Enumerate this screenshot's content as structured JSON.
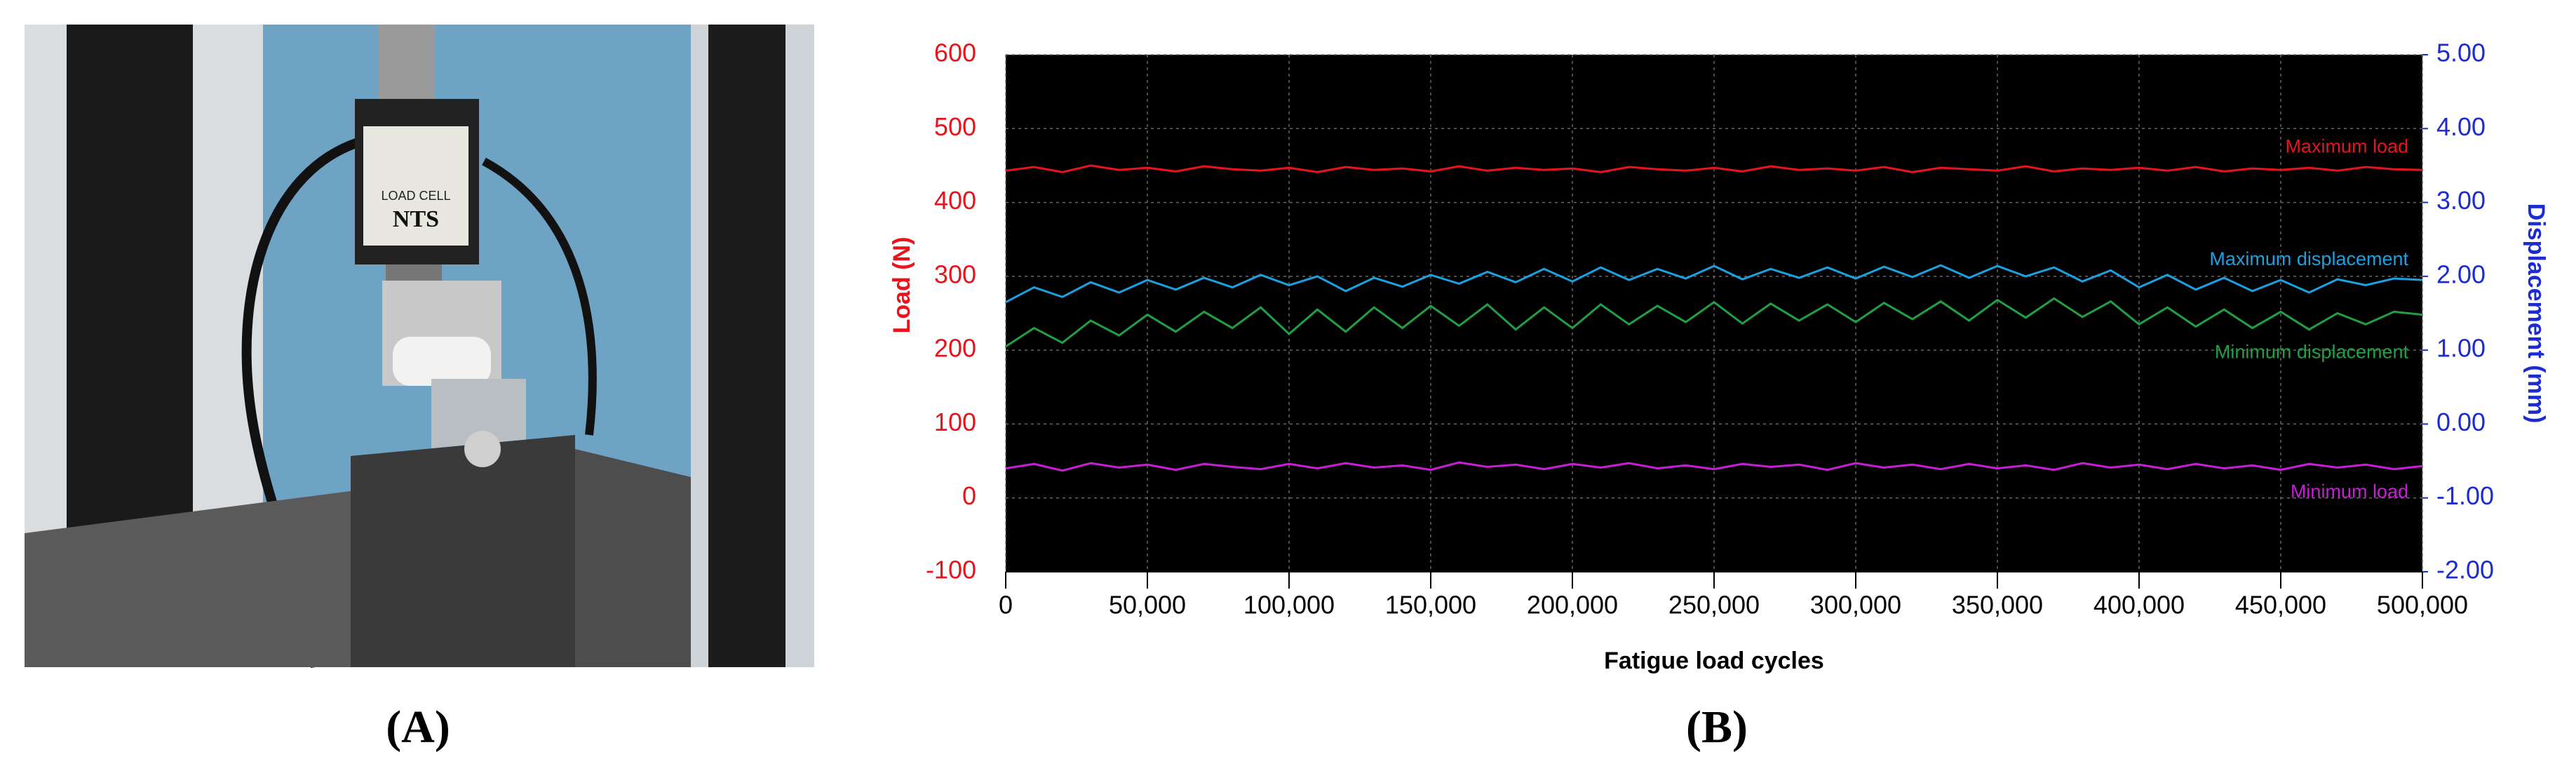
{
  "panel_a": {
    "label": "(A)",
    "load_cell_text": [
      "LOAD CELL",
      "NTS"
    ]
  },
  "panel_b_label": "(B)",
  "chart_data": {
    "type": "line",
    "xlabel": "Fatigue load cycles",
    "ylabel": "Load (N)",
    "y2label": "Displacement (mm)",
    "ycolor": "#e8141b",
    "y2color": "#1c2bd2",
    "background": "#000000",
    "grid": true,
    "x": [
      0,
      10000,
      20000,
      30000,
      40000,
      50000,
      60000,
      70000,
      80000,
      90000,
      100000,
      110000,
      120000,
      130000,
      140000,
      150000,
      160000,
      170000,
      180000,
      190000,
      200000,
      210000,
      220000,
      230000,
      240000,
      250000,
      260000,
      270000,
      280000,
      290000,
      300000,
      310000,
      320000,
      330000,
      340000,
      350000,
      360000,
      370000,
      380000,
      390000,
      400000,
      410000,
      420000,
      430000,
      440000,
      450000,
      460000,
      470000,
      480000,
      490000,
      500000
    ],
    "xlim": [
      0,
      500000
    ],
    "xticks": [
      0,
      {
        "value": 50000,
        "label": "50,000"
      },
      {
        "value": 100000,
        "label": "100,000"
      },
      {
        "value": 150000,
        "label": "150,000"
      },
      {
        "value": 200000,
        "label": "200,000"
      },
      {
        "value": 250000,
        "label": "250,000"
      },
      {
        "value": 300000,
        "label": "300,000"
      },
      {
        "value": 350000,
        "label": "350,000"
      },
      {
        "value": 400000,
        "label": "400,000"
      },
      {
        "value": 450000,
        "label": "450,000"
      },
      {
        "value": 500000,
        "label": "500,000"
      }
    ],
    "ylim": [
      -100,
      600
    ],
    "yticks": [
      -100,
      0,
      100,
      200,
      300,
      400,
      500,
      600
    ],
    "y2lim": [
      -2,
      5
    ],
    "y2ticks": [
      {
        "value": -2,
        "label": "-2.00"
      },
      {
        "value": -1,
        "label": "-1.00"
      },
      {
        "value": 0,
        "label": "0.00"
      },
      {
        "value": 1,
        "label": "1.00"
      },
      {
        "value": 2,
        "label": "2.00"
      },
      {
        "value": 3,
        "label": "3.00"
      },
      {
        "value": 4,
        "label": "4.00"
      },
      {
        "value": 5,
        "label": "5.00"
      }
    ],
    "series": [
      {
        "name": "Maximum load",
        "color": "#e8141b",
        "values": [
          443,
          448,
          441,
          450,
          444,
          447,
          442,
          449,
          445,
          443,
          447,
          441,
          448,
          444,
          446,
          442,
          449,
          443,
          447,
          444,
          446,
          441,
          448,
          445,
          443,
          447,
          442,
          449,
          444,
          446,
          443,
          448,
          441,
          447,
          445,
          443,
          449,
          442,
          446,
          444,
          447,
          443,
          448,
          442,
          446,
          444,
          447,
          443,
          448,
          445,
          444
        ]
      },
      {
        "name": "Minimum load",
        "color": "#c71ed6",
        "values": [
          40,
          46,
          37,
          47,
          41,
          45,
          38,
          46,
          42,
          39,
          46,
          40,
          47,
          41,
          44,
          38,
          48,
          42,
          45,
          39,
          46,
          41,
          47,
          40,
          44,
          39,
          46,
          42,
          45,
          38,
          47,
          41,
          45,
          39,
          46,
          40,
          44,
          38,
          47,
          41,
          45,
          39,
          46,
          40,
          44,
          38,
          46,
          41,
          45,
          39,
          43
        ]
      },
      {
        "name": "Maximum displacement",
        "color": "#1ba1e2",
        "axis": "y2",
        "values": [
          1.65,
          1.85,
          1.72,
          1.92,
          1.78,
          1.95,
          1.82,
          1.98,
          1.85,
          2.02,
          1.88,
          2.0,
          1.8,
          1.98,
          1.86,
          2.02,
          1.9,
          2.06,
          1.92,
          2.1,
          1.93,
          2.12,
          1.95,
          2.1,
          1.97,
          2.14,
          1.96,
          2.1,
          1.98,
          2.12,
          1.97,
          2.13,
          1.99,
          2.15,
          1.98,
          2.14,
          2.0,
          2.12,
          1.93,
          2.08,
          1.85,
          2.02,
          1.82,
          1.98,
          1.8,
          1.95,
          1.78,
          1.96,
          1.88,
          1.97,
          1.95
        ]
      },
      {
        "name": "Minimum displacement",
        "color": "#20a045",
        "axis": "y2",
        "values": [
          1.05,
          1.3,
          1.1,
          1.4,
          1.2,
          1.48,
          1.25,
          1.52,
          1.3,
          1.58,
          1.22,
          1.55,
          1.25,
          1.58,
          1.3,
          1.6,
          1.33,
          1.62,
          1.28,
          1.58,
          1.3,
          1.62,
          1.35,
          1.6,
          1.38,
          1.65,
          1.36,
          1.63,
          1.4,
          1.62,
          1.38,
          1.64,
          1.42,
          1.66,
          1.4,
          1.68,
          1.44,
          1.7,
          1.45,
          1.66,
          1.35,
          1.58,
          1.32,
          1.55,
          1.3,
          1.52,
          1.28,
          1.5,
          1.35,
          1.52,
          1.48
        ]
      }
    ]
  }
}
